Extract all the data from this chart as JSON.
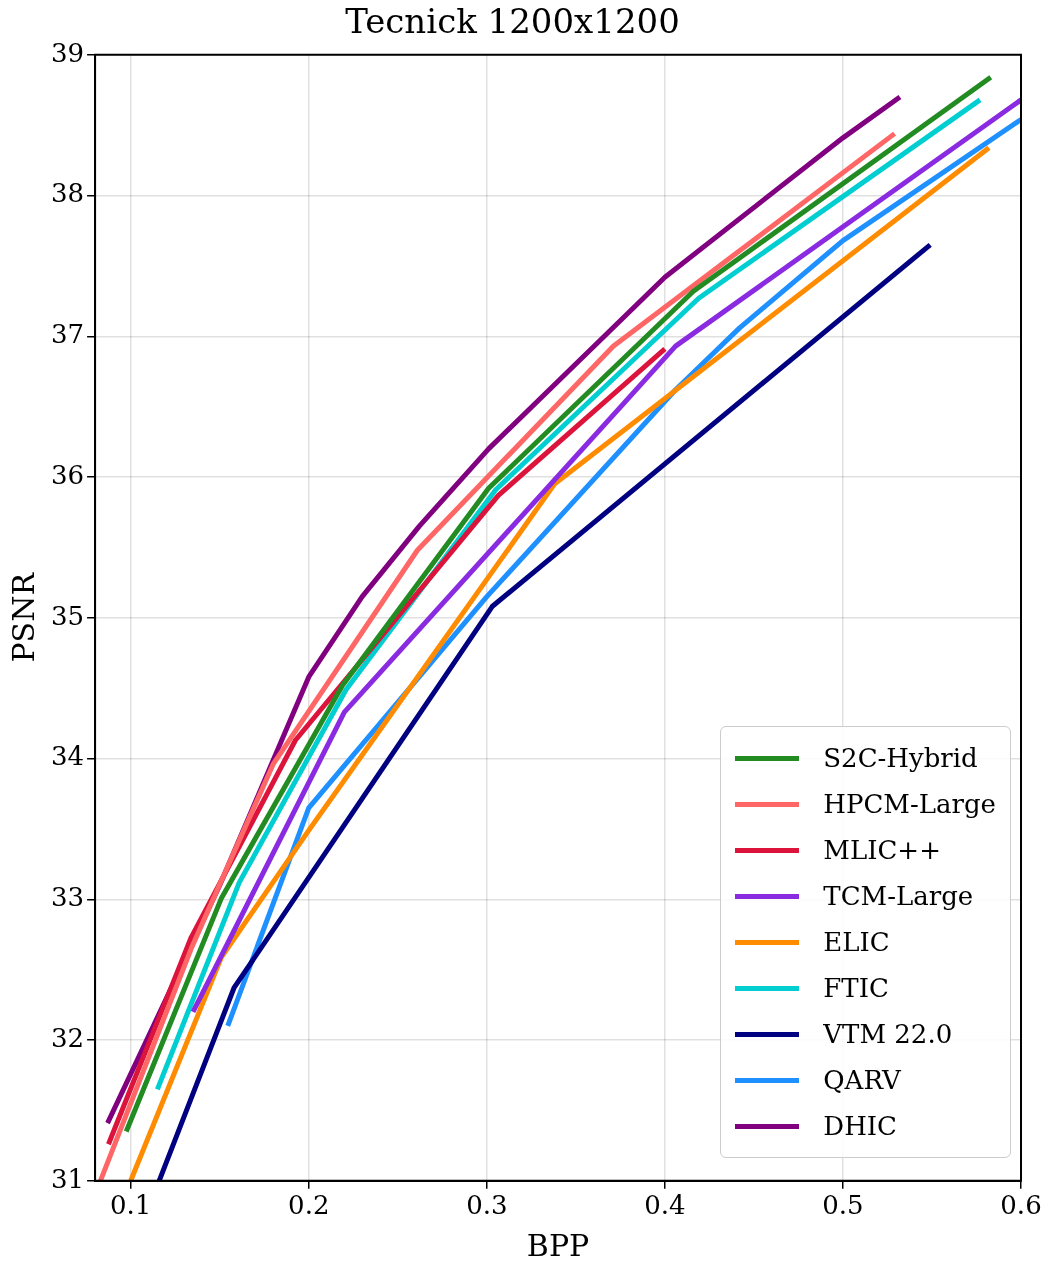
{
  "chart_data": {
    "type": "line",
    "title": "Tecnick 1200x1200",
    "xlabel": "BPP",
    "ylabel": "PSNR",
    "xlim": [
      0.08,
      0.6
    ],
    "xticks": [
      0.1,
      0.2,
      0.3,
      0.4,
      0.5,
      0.6
    ],
    "ylim": [
      31,
      39
    ],
    "yticks": [
      31,
      32,
      33,
      34,
      35,
      36,
      37,
      38,
      39
    ],
    "grid": true,
    "legend": "bottom right",
    "marker": "none",
    "line_style": "solid",
    "series": [
      {
        "name": "S2C-Hybrid",
        "color": "#228b22",
        "x": [
          0.0975,
          0.151,
          0.219,
          0.301,
          0.416,
          0.583
        ],
        "values": [
          31.35,
          33.01,
          34.52,
          35.92,
          37.32,
          38.84
        ]
      },
      {
        "name": "HPCM-Large",
        "color": "#ff6666",
        "x": [
          0.083,
          0.134,
          0.18,
          0.261,
          0.371,
          0.529
        ],
        "values": [
          31.0,
          32.65,
          33.96,
          35.48,
          36.93,
          38.44
        ]
      },
      {
        "name": "MLIC++",
        "color": "#dc143c",
        "x": [
          0.0875,
          0.134,
          0.1925,
          0.3065,
          0.4
        ],
        "values": [
          31.26,
          32.73,
          34.13,
          35.87,
          36.91
        ]
      },
      {
        "name": "TCM-Large",
        "color": "#8a2be2",
        "x": [
          0.135,
          0.22,
          0.406,
          0.6
        ],
        "values": [
          32.2,
          34.33,
          36.93,
          38.68
        ]
      },
      {
        "name": "ELIC",
        "color": "#ff8c00",
        "x": [
          0.1,
          0.151,
          0.2,
          0.338,
          0.582
        ],
        "values": [
          31.0,
          32.59,
          33.49,
          35.95,
          38.34
        ]
      },
      {
        "name": "FTIC",
        "color": "#00ced1",
        "x": [
          0.115,
          0.161,
          0.221,
          0.305,
          0.419,
          0.577
        ],
        "values": [
          31.65,
          33.12,
          34.49,
          35.91,
          37.27,
          38.68
        ]
      },
      {
        "name": "VTM 22.0",
        "color": "#000080",
        "x": [
          0.116,
          0.158,
          0.303,
          0.549
        ],
        "values": [
          31.0,
          32.37,
          35.08,
          37.65
        ]
      },
      {
        "name": "QARV",
        "color": "#1e90ff",
        "x": [
          0.1545,
          0.2,
          0.3,
          0.406,
          0.442,
          0.5,
          0.6
        ],
        "values": [
          32.1,
          33.65,
          35.15,
          36.62,
          37.06,
          37.68,
          38.54
        ]
      },
      {
        "name": "DHIC",
        "color": "#800080",
        "x": [
          0.087,
          0.15,
          0.2,
          0.23,
          0.262,
          0.301,
          0.4,
          0.5,
          0.532
        ],
        "values": [
          31.41,
          33.1,
          34.58,
          35.15,
          35.65,
          36.2,
          37.42,
          38.41,
          38.7
        ]
      }
    ]
  }
}
